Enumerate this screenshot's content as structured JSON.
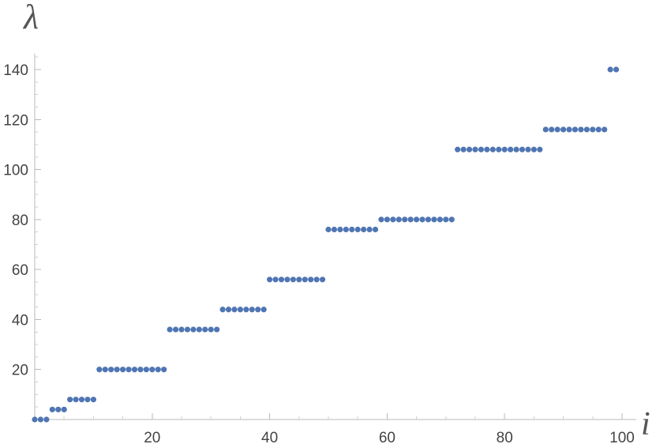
{
  "chart_data": {
    "type": "scatter",
    "title": "",
    "xlabel": "i",
    "ylabel": "λ",
    "xlim": [
      0,
      100
    ],
    "ylim": [
      0,
      140
    ],
    "x_ticks": [
      20,
      40,
      60,
      80,
      100
    ],
    "y_ticks": [
      20,
      40,
      60,
      80,
      100,
      120,
      140
    ],
    "x_tick_labels": [
      "20",
      "40",
      "60",
      "80",
      "100"
    ],
    "y_tick_labels": [
      "20",
      "40",
      "60",
      "80",
      "100",
      "120",
      "140"
    ],
    "grid": false,
    "marker_color": "#4f75b3",
    "axis_color": "#b8b8b8",
    "tick_label_color": "#444444",
    "series": [
      {
        "x": [
          0,
          1,
          2,
          3,
          4,
          5,
          6,
          7,
          8,
          9,
          10,
          11,
          12,
          13,
          14,
          15,
          16,
          17,
          18,
          19,
          20,
          21,
          22,
          23,
          24,
          25,
          26,
          27,
          28,
          29,
          30,
          31,
          32,
          33,
          34,
          35,
          36,
          37,
          38,
          39,
          40,
          41,
          42,
          43,
          44,
          45,
          46,
          47,
          48,
          49,
          50,
          51,
          52,
          53,
          54,
          55,
          56,
          57,
          58,
          59,
          60,
          61,
          62,
          63,
          64,
          65,
          66,
          67,
          68,
          69,
          70,
          71,
          72,
          73,
          74,
          75,
          76,
          77,
          78,
          79,
          80,
          81,
          82,
          83,
          84,
          85,
          86,
          87,
          88,
          89,
          90,
          91,
          92,
          93,
          94,
          95,
          96,
          97,
          98,
          99
        ],
        "y": [
          0,
          0,
          0,
          4,
          4,
          4,
          8,
          8,
          8,
          8,
          8,
          20,
          20,
          20,
          20,
          20,
          20,
          20,
          20,
          20,
          20,
          20,
          20,
          36,
          36,
          36,
          36,
          36,
          36,
          36,
          36,
          36,
          44,
          44,
          44,
          44,
          44,
          44,
          44,
          44,
          56,
          56,
          56,
          56,
          56,
          56,
          56,
          56,
          56,
          56,
          76,
          76,
          76,
          76,
          76,
          76,
          76,
          76,
          76,
          80,
          80,
          80,
          80,
          80,
          80,
          80,
          80,
          80,
          80,
          80,
          80,
          80,
          108,
          108,
          108,
          108,
          108,
          108,
          108,
          108,
          108,
          108,
          108,
          108,
          108,
          108,
          108,
          116,
          116,
          116,
          116,
          116,
          116,
          116,
          116,
          116,
          116,
          116,
          140,
          140
        ]
      }
    ]
  }
}
